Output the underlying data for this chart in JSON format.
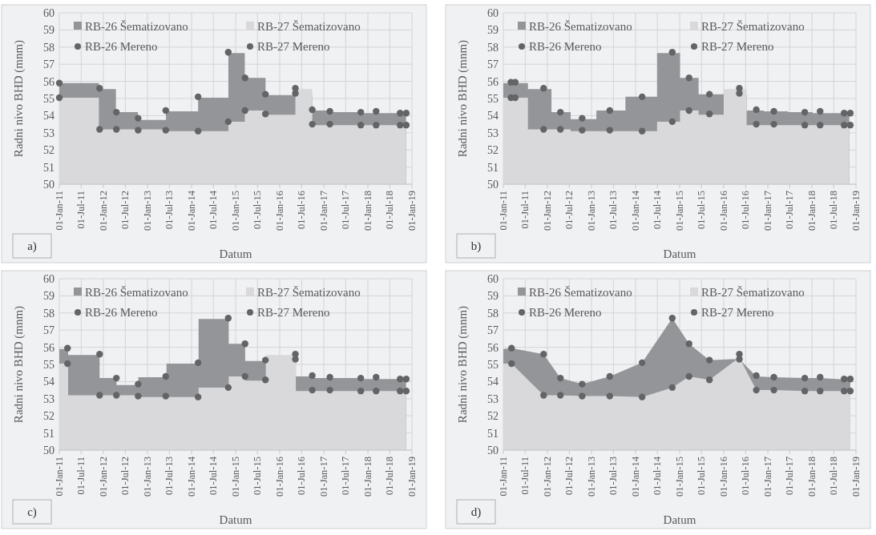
{
  "chart_data": [
    {
      "type": "area",
      "xlabel": "Datum",
      "ylabel": "Radni nivo BHD (mnm)",
      "annotations": [
        "a)"
      ],
      "legend": "top",
      "grid": true,
      "xlim": [
        "2011-01-01",
        "2019-01-01"
      ],
      "ylim": [
        50,
        60
      ],
      "yticks": [
        50,
        51,
        52,
        53,
        54,
        55,
        56,
        57,
        58,
        59,
        60
      ],
      "xticks": [
        {
          "value": "2011-01-01",
          "label": "01-Jan-11"
        },
        {
          "value": "2011-07-01",
          "label": "01-Jul-11"
        },
        {
          "value": "2012-01-01",
          "label": "01-Jan-12"
        },
        {
          "value": "2012-07-01",
          "label": "01-Jul-12"
        },
        {
          "value": "2013-01-01",
          "label": "01-Jan-13"
        },
        {
          "value": "2013-07-01",
          "label": "01-Jul-13"
        },
        {
          "value": "2014-01-01",
          "label": "01-Jan-14"
        },
        {
          "value": "2014-07-01",
          "label": "01-Jul-14"
        },
        {
          "value": "2015-01-01",
          "label": "01-Jan-15"
        },
        {
          "value": "2015-07-01",
          "label": "01-Jul-15"
        },
        {
          "value": "2016-01-01",
          "label": "01-Jan-16"
        },
        {
          "value": "2016-07-01",
          "label": "01-Jul-16"
        },
        {
          "value": "2017-01-01",
          "label": "01-Jan-17"
        },
        {
          "value": "2017-07-01",
          "label": "01-Jul-17"
        },
        {
          "value": "2018-01-01",
          "label": "01-Jan-18"
        },
        {
          "value": "2018-07-01",
          "label": "01-Jul-18"
        },
        {
          "value": "2019-01-01",
          "label": "01-Jan-19"
        }
      ],
      "series": [
        {
          "name": "RB-26 Šematizovano",
          "color": "#939598",
          "x": [
            "2011-01-01",
            "2011-11-25",
            "2011-11-25",
            "2012-04-14",
            "2012-04-14",
            "2012-10-13",
            "2012-10-13",
            "2013-06-03",
            "2013-06-03",
            "2014-02-24",
            "2014-02-24",
            "2014-11-02",
            "2014-11-02",
            "2015-03-18",
            "2015-03-18",
            "2015-09-06",
            "2015-09-06",
            "2016-09-27",
            "2016-09-27",
            "2017-02-20",
            "2017-02-20",
            "2017-11-02",
            "2017-11-02",
            "2018-11-13"
          ],
          "values": [
            55.9,
            55.9,
            55.55,
            55.55,
            54.2,
            54.2,
            53.75,
            53.75,
            54.25,
            54.25,
            55.05,
            55.05,
            57.65,
            57.65,
            56.2,
            56.2,
            55.2,
            55.2,
            54.3,
            54.3,
            54.2,
            54.2,
            54.15,
            54.15
          ]
        },
        {
          "name": "RB-27 Šematizovano",
          "color": "#d9d9db",
          "x": [
            "2011-01-01",
            "2011-11-25",
            "2011-11-25",
            "2013-06-03",
            "2013-06-03",
            "2014-11-02",
            "2014-11-02",
            "2015-03-18",
            "2015-03-18",
            "2015-09-06",
            "2015-09-06",
            "2016-05-10",
            "2016-05-10",
            "2016-09-27",
            "2016-09-27",
            "2018-11-13"
          ],
          "values": [
            55.05,
            55.05,
            53.2,
            53.2,
            53.1,
            53.1,
            53.65,
            53.65,
            54.3,
            54.3,
            54.05,
            54.05,
            55.55,
            55.55,
            53.45,
            53.45
          ]
        },
        {
          "name": "RB-26 Mereno",
          "type": "scatter",
          "marker": "circle",
          "color": "#636466",
          "x": [
            "2011-01-01",
            "2011-12-01",
            "2012-04-18",
            "2012-10-15",
            "2013-06-01",
            "2014-02-24",
            "2014-11-01",
            "2015-03-20",
            "2015-09-05",
            "2016-05-10",
            "2016-09-27",
            "2017-02-20",
            "2017-11-03",
            "2018-03-10",
            "2018-09-25",
            "2018-11-15"
          ],
          "values": [
            55.9,
            55.6,
            54.2,
            53.85,
            54.3,
            55.1,
            57.7,
            56.2,
            55.25,
            55.6,
            54.35,
            54.25,
            54.2,
            54.25,
            54.15,
            54.15
          ]
        },
        {
          "name": "RB-27 Mereno",
          "type": "scatter",
          "marker": "circle",
          "color": "#636466",
          "x": [
            "2011-01-01",
            "2011-12-01",
            "2012-04-18",
            "2012-10-15",
            "2013-06-01",
            "2014-02-24",
            "2014-11-01",
            "2015-03-20",
            "2015-09-05",
            "2016-05-10",
            "2016-09-27",
            "2017-02-20",
            "2017-11-03",
            "2018-03-10",
            "2018-09-25",
            "2018-11-15"
          ],
          "values": [
            55.05,
            53.2,
            53.2,
            53.15,
            53.15,
            53.1,
            53.65,
            54.3,
            54.1,
            55.3,
            53.5,
            53.5,
            53.45,
            53.45,
            53.45,
            53.45
          ]
        }
      ]
    },
    {
      "type": "area",
      "xlabel": "Datum",
      "ylabel": "Radni nivo BHD (mnm)",
      "annotations": [
        "b)"
      ],
      "legend": "top",
      "grid": true,
      "xlim": [
        "2011-01-01",
        "2019-01-01"
      ],
      "ylim": [
        50,
        60
      ],
      "yticks": [
        50,
        51,
        52,
        53,
        54,
        55,
        56,
        57,
        58,
        59,
        60
      ],
      "xticks": [
        {
          "value": "2011-01-01",
          "label": "01-Jan-11"
        },
        {
          "value": "2011-07-01",
          "label": "01-Jul-11"
        },
        {
          "value": "2012-01-01",
          "label": "01-Jan-12"
        },
        {
          "value": "2012-07-01",
          "label": "01-Jul-12"
        },
        {
          "value": "2013-01-01",
          "label": "01-Jan-13"
        },
        {
          "value": "2013-07-01",
          "label": "01-Jul-13"
        },
        {
          "value": "2014-01-01",
          "label": "01-Jan-14"
        },
        {
          "value": "2014-07-01",
          "label": "01-Jul-14"
        },
        {
          "value": "2015-01-01",
          "label": "01-Jan-15"
        },
        {
          "value": "2015-07-01",
          "label": "01-Jul-15"
        },
        {
          "value": "2016-01-01",
          "label": "01-Jan-16"
        },
        {
          "value": "2016-07-01",
          "label": "01-Jul-16"
        },
        {
          "value": "2017-01-01",
          "label": "01-Jan-17"
        },
        {
          "value": "2017-07-01",
          "label": "01-Jul-17"
        },
        {
          "value": "2018-01-01",
          "label": "01-Jan-18"
        },
        {
          "value": "2018-07-01",
          "label": "01-Jul-18"
        },
        {
          "value": "2019-01-01",
          "label": "01-Jan-19"
        }
      ],
      "series": [
        {
          "name": "RB-26 Šematizovano",
          "color": "#939598",
          "x": [
            "2011-01-01",
            "2011-07-24",
            "2011-07-24",
            "2012-02-04",
            "2012-02-04",
            "2012-07-12",
            "2012-07-12",
            "2013-02-10",
            "2013-02-10",
            "2013-10-09",
            "2013-10-09",
            "2014-06-28",
            "2014-06-28",
            "2015-01-04",
            "2015-01-04",
            "2015-06-07",
            "2015-06-07",
            "2016-07-09",
            "2016-07-09",
            "2016-11-28",
            "2016-11-28",
            "2017-06-18",
            "2017-06-18",
            "2018-01-07",
            "2018-01-07",
            "2018-11-07"
          ],
          "values": [
            55.9,
            55.9,
            55.55,
            55.55,
            54.2,
            54.2,
            53.8,
            53.8,
            54.3,
            54.3,
            55.1,
            55.1,
            57.65,
            57.65,
            56.2,
            56.2,
            55.25,
            55.25,
            54.3,
            54.3,
            54.25,
            54.25,
            54.2,
            54.2,
            54.15,
            54.15
          ]
        },
        {
          "name": "RB-27 Šematizovano",
          "color": "#d9d9db",
          "x": [
            "2011-01-01",
            "2011-07-24",
            "2011-07-24",
            "2012-07-12",
            "2012-07-12",
            "2014-06-28",
            "2014-06-28",
            "2015-01-04",
            "2015-01-04",
            "2015-06-07",
            "2015-06-07",
            "2016-01-01",
            "2016-01-01",
            "2016-07-09",
            "2016-07-09",
            "2018-11-07"
          ],
          "values": [
            55.05,
            55.05,
            53.2,
            53.2,
            53.1,
            53.1,
            53.65,
            53.65,
            54.3,
            54.3,
            54.05,
            54.05,
            55.55,
            55.55,
            53.45,
            53.45
          ]
        },
        {
          "name": "RB-26 Mereno",
          "type": "scatter",
          "marker": "circle",
          "color": "#636466",
          "x": [
            "2011-03-05",
            "2011-04-10",
            "2011-12-01",
            "2012-04-18",
            "2012-10-15",
            "2013-06-01",
            "2014-02-24",
            "2014-11-01",
            "2015-03-20",
            "2015-09-05",
            "2016-05-10",
            "2016-09-27",
            "2017-02-20",
            "2017-11-03",
            "2018-03-10",
            "2018-09-25",
            "2018-11-15"
          ],
          "values": [
            55.95,
            55.95,
            55.6,
            54.2,
            53.85,
            54.3,
            55.1,
            57.7,
            56.2,
            55.25,
            55.6,
            54.35,
            54.25,
            54.2,
            54.25,
            54.15,
            54.15
          ]
        },
        {
          "name": "RB-27 Mereno",
          "type": "scatter",
          "marker": "circle",
          "color": "#636466",
          "x": [
            "2011-03-05",
            "2011-04-10",
            "2011-12-01",
            "2012-04-18",
            "2012-10-15",
            "2013-06-01",
            "2014-02-24",
            "2014-11-01",
            "2015-03-20",
            "2015-09-05",
            "2016-05-10",
            "2016-09-27",
            "2017-02-20",
            "2017-11-03",
            "2018-03-10",
            "2018-09-25",
            "2018-11-15"
          ],
          "values": [
            55.05,
            55.05,
            53.2,
            53.2,
            53.15,
            53.15,
            53.1,
            53.65,
            54.3,
            54.1,
            55.3,
            53.5,
            53.5,
            53.45,
            53.45,
            53.45,
            53.45
          ]
        }
      ]
    },
    {
      "type": "area",
      "xlabel": "Datum",
      "ylabel": "Radni nivo BHD (mnm)",
      "annotations": [
        "c)"
      ],
      "legend": "top",
      "grid": true,
      "xlim": [
        "2011-01-01",
        "2019-01-01"
      ],
      "ylim": [
        50,
        60
      ],
      "yticks": [
        50,
        51,
        52,
        53,
        54,
        55,
        56,
        57,
        58,
        59,
        60
      ],
      "xticks": [
        {
          "value": "2011-01-01",
          "label": "01-Jan-11"
        },
        {
          "value": "2011-07-01",
          "label": "01-Jul-11"
        },
        {
          "value": "2012-01-01",
          "label": "01-Jan-12"
        },
        {
          "value": "2012-07-01",
          "label": "01-Jul-12"
        },
        {
          "value": "2013-01-01",
          "label": "01-Jan-13"
        },
        {
          "value": "2013-07-01",
          "label": "01-Jul-13"
        },
        {
          "value": "2014-01-01",
          "label": "01-Jan-14"
        },
        {
          "value": "2014-07-01",
          "label": "01-Jul-14"
        },
        {
          "value": "2015-01-01",
          "label": "01-Jan-15"
        },
        {
          "value": "2015-07-01",
          "label": "01-Jul-15"
        },
        {
          "value": "2016-01-01",
          "label": "01-Jan-16"
        },
        {
          "value": "2016-07-01",
          "label": "01-Jul-16"
        },
        {
          "value": "2017-01-01",
          "label": "01-Jan-17"
        },
        {
          "value": "2017-07-01",
          "label": "01-Jul-17"
        },
        {
          "value": "2018-01-01",
          "label": "01-Jan-18"
        },
        {
          "value": "2018-07-01",
          "label": "01-Jul-18"
        },
        {
          "value": "2019-01-01",
          "label": "01-Jan-19"
        }
      ],
      "series": [
        {
          "name": "RB-26 Šematizovano",
          "color": "#939598",
          "x": [
            "2011-01-01",
            "2011-03-15",
            "2011-03-15",
            "2011-12-01",
            "2011-12-01",
            "2012-04-19",
            "2012-04-19",
            "2012-10-17",
            "2012-10-17",
            "2013-06-07",
            "2013-06-07",
            "2014-02-28",
            "2014-02-28",
            "2014-11-05",
            "2014-11-05",
            "2015-03-21",
            "2015-03-21",
            "2016-05-14",
            "2016-05-14",
            "2016-09-27",
            "2016-09-27",
            "2017-11-02",
            "2017-11-02",
            "2018-11-13"
          ],
          "values": [
            55.9,
            55.9,
            55.55,
            55.55,
            54.2,
            54.2,
            53.8,
            53.8,
            54.25,
            54.25,
            55.05,
            55.05,
            57.65,
            57.65,
            56.2,
            56.2,
            55.2,
            55.2,
            54.3,
            54.3,
            54.2,
            54.2,
            54.15,
            54.15
          ]
        },
        {
          "name": "RB-27 Šematizovano",
          "color": "#d9d9db",
          "x": [
            "2011-01-01",
            "2011-03-15",
            "2011-03-15",
            "2012-10-17",
            "2012-10-17",
            "2014-02-28",
            "2014-02-28",
            "2014-11-05",
            "2014-11-05",
            "2015-03-21",
            "2015-03-21",
            "2015-09-08",
            "2015-09-08",
            "2016-05-14",
            "2016-05-14",
            "2018-11-13"
          ],
          "values": [
            55.05,
            55.05,
            53.2,
            53.2,
            53.1,
            53.1,
            53.65,
            53.65,
            54.3,
            54.3,
            54.05,
            54.05,
            55.55,
            55.55,
            53.45,
            53.45
          ]
        },
        {
          "name": "RB-26 Mereno",
          "type": "scatter",
          "marker": "circle",
          "color": "#636466",
          "x": [
            "2011-03-10",
            "2011-12-01",
            "2012-04-18",
            "2012-10-15",
            "2013-06-01",
            "2014-02-24",
            "2014-11-01",
            "2015-03-20",
            "2015-09-05",
            "2016-05-10",
            "2016-09-27",
            "2017-02-20",
            "2017-11-03",
            "2018-03-10",
            "2018-09-25",
            "2018-11-15"
          ],
          "values": [
            55.95,
            55.6,
            54.2,
            53.85,
            54.3,
            55.1,
            57.7,
            56.2,
            55.25,
            55.6,
            54.35,
            54.25,
            54.2,
            54.25,
            54.15,
            54.15
          ]
        },
        {
          "name": "RB-27 Mereno",
          "type": "scatter",
          "marker": "circle",
          "color": "#636466",
          "x": [
            "2011-03-10",
            "2011-12-01",
            "2012-04-18",
            "2012-10-15",
            "2013-06-01",
            "2014-02-24",
            "2014-11-01",
            "2015-03-20",
            "2015-09-05",
            "2016-05-10",
            "2016-09-27",
            "2017-02-20",
            "2017-11-03",
            "2018-03-10",
            "2018-09-25",
            "2018-11-15"
          ],
          "values": [
            55.05,
            53.2,
            53.2,
            53.15,
            53.15,
            53.1,
            53.65,
            54.3,
            54.1,
            55.3,
            53.5,
            53.5,
            53.45,
            53.45,
            53.45,
            53.45
          ]
        }
      ]
    },
    {
      "type": "area",
      "xlabel": "Datum",
      "ylabel": "Radni nivo BHD (mnm)",
      "annotations": [
        "d)"
      ],
      "legend": "top",
      "grid": true,
      "xlim": [
        "2011-01-01",
        "2019-01-01"
      ],
      "ylim": [
        50,
        60
      ],
      "yticks": [
        50,
        51,
        52,
        53,
        54,
        55,
        56,
        57,
        58,
        59,
        60
      ],
      "xticks": [
        {
          "value": "2011-01-01",
          "label": "01-Jan-11"
        },
        {
          "value": "2011-07-01",
          "label": "01-Jul-11"
        },
        {
          "value": "2012-01-01",
          "label": "01-Jan-12"
        },
        {
          "value": "2012-07-01",
          "label": "01-Jul-12"
        },
        {
          "value": "2013-01-01",
          "label": "01-Jan-13"
        },
        {
          "value": "2013-07-01",
          "label": "01-Jul-13"
        },
        {
          "value": "2014-01-01",
          "label": "01-Jan-14"
        },
        {
          "value": "2014-07-01",
          "label": "01-Jul-14"
        },
        {
          "value": "2015-01-01",
          "label": "01-Jan-15"
        },
        {
          "value": "2015-07-01",
          "label": "01-Jul-15"
        },
        {
          "value": "2016-01-01",
          "label": "01-Jan-16"
        },
        {
          "value": "2016-07-01",
          "label": "01-Jul-16"
        },
        {
          "value": "2017-01-01",
          "label": "01-Jan-17"
        },
        {
          "value": "2017-07-01",
          "label": "01-Jul-17"
        },
        {
          "value": "2018-01-01",
          "label": "01-Jan-18"
        },
        {
          "value": "2018-07-01",
          "label": "01-Jul-18"
        },
        {
          "value": "2019-01-01",
          "label": "01-Jan-19"
        }
      ],
      "series": [
        {
          "name": "RB-26 Šematizovano",
          "color": "#939598",
          "x": [
            "2011-01-01",
            "2011-03-10",
            "2011-12-01",
            "2012-04-18",
            "2012-10-15",
            "2013-06-01",
            "2014-02-24",
            "2014-11-01",
            "2015-03-20",
            "2015-09-05",
            "2016-03-01",
            "2016-05-10",
            "2016-09-27",
            "2017-02-20",
            "2017-11-03",
            "2018-03-10",
            "2018-11-15"
          ],
          "values": [
            55.9,
            55.95,
            55.6,
            54.2,
            53.85,
            54.3,
            55.1,
            57.7,
            56.2,
            55.25,
            55.3,
            55.3,
            54.3,
            54.25,
            54.2,
            54.2,
            54.1
          ]
        },
        {
          "name": "RB-27 Šematizovano",
          "color": "#d9d9db",
          "x": [
            "2011-01-01",
            "2011-03-10",
            "2011-12-01",
            "2012-04-18",
            "2012-10-15",
            "2013-06-01",
            "2014-02-24",
            "2014-11-01",
            "2015-03-20",
            "2015-09-05",
            "2016-05-10",
            "2016-09-27",
            "2017-02-20",
            "2017-11-03",
            "2018-03-10",
            "2018-11-15"
          ],
          "values": [
            55.05,
            55.05,
            53.2,
            53.2,
            53.15,
            53.15,
            53.1,
            53.65,
            54.3,
            54.1,
            55.4,
            53.5,
            53.5,
            53.45,
            53.45,
            53.45
          ]
        },
        {
          "name": "RB-26 Mereno",
          "type": "scatter",
          "marker": "circle",
          "color": "#636466",
          "x": [
            "2011-03-10",
            "2011-12-01",
            "2012-04-18",
            "2012-10-15",
            "2013-06-01",
            "2014-02-24",
            "2014-11-01",
            "2015-03-20",
            "2015-09-05",
            "2016-05-10",
            "2016-09-27",
            "2017-02-20",
            "2017-11-03",
            "2018-03-10",
            "2018-09-25",
            "2018-11-15"
          ],
          "values": [
            55.95,
            55.6,
            54.2,
            53.85,
            54.3,
            55.1,
            57.7,
            56.2,
            55.25,
            55.6,
            54.35,
            54.25,
            54.2,
            54.25,
            54.15,
            54.15
          ]
        },
        {
          "name": "RB-27 Mereno",
          "type": "scatter",
          "marker": "circle",
          "color": "#636466",
          "x": [
            "2011-03-10",
            "2011-12-01",
            "2012-04-18",
            "2012-10-15",
            "2013-06-01",
            "2014-02-24",
            "2014-11-01",
            "2015-03-20",
            "2015-09-05",
            "2016-05-10",
            "2016-09-27",
            "2017-02-20",
            "2017-11-03",
            "2018-03-10",
            "2018-09-25",
            "2018-11-15"
          ],
          "values": [
            55.05,
            53.2,
            53.2,
            53.15,
            53.15,
            53.1,
            53.65,
            54.3,
            54.1,
            55.3,
            53.5,
            53.5,
            53.45,
            53.45,
            53.45,
            53.45
          ]
        }
      ]
    }
  ]
}
